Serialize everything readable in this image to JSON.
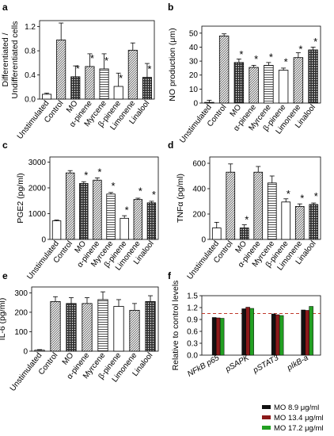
{
  "chart_data": [
    {
      "panel": "a",
      "type": "bar",
      "ylabel": "Differentiated / Undifferentiated cells",
      "yticks": [
        "0.0",
        "0.4",
        "0.8",
        "1.2"
      ],
      "ylim": [
        0,
        1.3
      ],
      "categories": [
        "Unstimulated",
        "Control",
        "MO",
        "α-pinene",
        "Myrcene",
        "β-pinene",
        "Limonene",
        "Linalool"
      ],
      "values": [
        0.08,
        0.98,
        0.37,
        0.54,
        0.5,
        0.21,
        0.81,
        0.36
      ],
      "errors": [
        0.02,
        0.28,
        0.18,
        0.21,
        0.25,
        0.22,
        0.12,
        0.23
      ],
      "stars": [
        "",
        "",
        "*",
        "*",
        "*",
        "*",
        "",
        "*"
      ],
      "fills": [
        "plain",
        "diag",
        "dots",
        "diag",
        "horiz",
        "plain",
        "diag",
        "dots"
      ]
    },
    {
      "panel": "b",
      "type": "bar",
      "ylabel": "NO production (μm)",
      "yticks": [
        "0",
        "10",
        "20",
        "30",
        "40",
        "50"
      ],
      "ylim": [
        0,
        55
      ],
      "categories": [
        "Unstimulated",
        "Control",
        "MO",
        "α-pinene",
        "Myrcene",
        "β-pinene",
        "Limonene",
        "Linalool"
      ],
      "values": [
        0.5,
        48,
        29,
        25.5,
        27,
        23.5,
        32.5,
        38
      ],
      "errors": [
        1.5,
        1.5,
        2.5,
        1.5,
        2,
        1.5,
        3.5,
        2
      ],
      "stars": [
        "",
        "",
        "*",
        "*",
        "*",
        "*",
        "*",
        "*"
      ],
      "fills": [
        "plain",
        "diag",
        "dots",
        "diag",
        "horiz",
        "plain",
        "diag",
        "dots"
      ]
    },
    {
      "panel": "c",
      "type": "bar",
      "ylabel": "PGE2 (pg/ml)",
      "yticks": [
        "0",
        "1000",
        "2000",
        "3000"
      ],
      "ylim": [
        0,
        3200
      ],
      "categories": [
        "Unstimulated",
        "Control",
        "MO",
        "α-pinene",
        "Myrcene",
        "β-pinene",
        "Limonene",
        "Linalool"
      ],
      "values": [
        720,
        2580,
        2170,
        2300,
        1760,
        820,
        1550,
        1420
      ],
      "errors": [
        30,
        90,
        70,
        90,
        60,
        100,
        50,
        60
      ],
      "stars": [
        "",
        "",
        "*",
        "*",
        "*",
        "*",
        "*",
        "*"
      ],
      "fills": [
        "plain",
        "diag",
        "dots",
        "diag",
        "horiz",
        "plain",
        "diag",
        "dots"
      ]
    },
    {
      "panel": "d",
      "type": "bar",
      "ylabel": "TNFα (pg/ml)",
      "yticks": [
        "0",
        "200",
        "400",
        "600"
      ],
      "ylim": [
        0,
        650
      ],
      "categories": [
        "Unstimulated",
        "Control",
        "MO",
        "α-pinene",
        "Myrcene",
        "β-pinene",
        "Limonene",
        "Linalool"
      ],
      "values": [
        90,
        530,
        90,
        530,
        445,
        295,
        260,
        275
      ],
      "errors": [
        45,
        65,
        25,
        45,
        55,
        25,
        20,
        12
      ],
      "stars": [
        "",
        "",
        "*",
        "",
        "",
        "*",
        "*",
        "*"
      ],
      "fills": [
        "plain",
        "diag",
        "dots",
        "diag",
        "horiz",
        "plain",
        "diag",
        "dots"
      ]
    },
    {
      "panel": "e",
      "type": "bar",
      "ylabel": "IL-6 (pg/ml)",
      "yticks": [
        "0",
        "100",
        "200",
        "300"
      ],
      "ylim": [
        0,
        330
      ],
      "categories": [
        "Unstimulated",
        "Control",
        "MO",
        "α-pinene",
        "Myrcene",
        "β-pinene",
        "Limonene",
        "Linalool"
      ],
      "values": [
        5,
        255,
        245,
        245,
        265,
        230,
        210,
        255
      ],
      "errors": [
        3,
        25,
        30,
        30,
        40,
        35,
        35,
        30
      ],
      "stars": [
        "",
        "",
        "",
        "",
        "",
        "",
        "",
        ""
      ],
      "fills": [
        "plain",
        "diag",
        "dots",
        "diag",
        "horiz",
        "plain",
        "diag",
        "dots"
      ]
    },
    {
      "panel": "f",
      "type": "bar",
      "ylabel": "Relative to control levels",
      "yticks": [
        "0.0",
        "0.3",
        "0.6",
        "0.9",
        "1.2",
        "1.5"
      ],
      "ylim": [
        0,
        1.5
      ],
      "reference_line": 1.05,
      "categories": [
        "NFkB p65",
        "pSAPK",
        "pSTAT3",
        "pIkB-a"
      ],
      "series": [
        {
          "name": "MO  8.9 μg/ml",
          "color": "#111111",
          "values": [
            0.95,
            1.17,
            1.04,
            1.14
          ]
        },
        {
          "name": "MO  13.4 μg/ml",
          "color": "#8b1a1a",
          "values": [
            0.94,
            1.21,
            1.02,
            1.13
          ]
        },
        {
          "name": "MO  17.2 μg/ml",
          "color": "#22a022",
          "values": [
            0.93,
            1.18,
            1.0,
            1.23
          ]
        }
      ]
    }
  ]
}
